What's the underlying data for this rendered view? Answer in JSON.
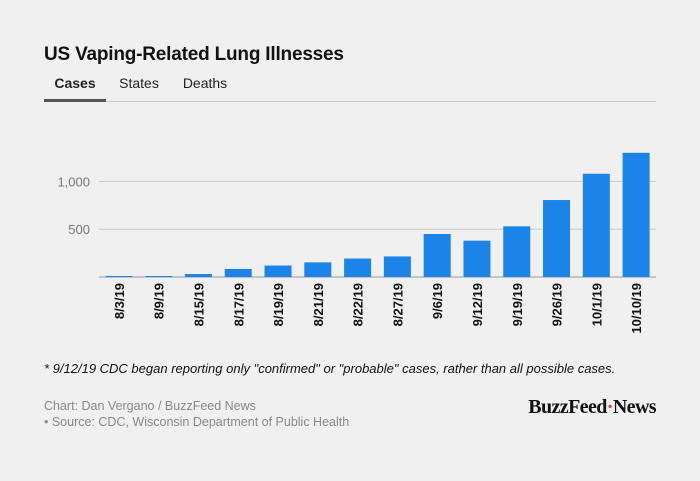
{
  "title": "US Vaping-Related Lung Illnesses",
  "tabs": [
    {
      "label": "Cases",
      "active": true
    },
    {
      "label": "States",
      "active": false
    },
    {
      "label": "Deaths",
      "active": false
    }
  ],
  "colors": {
    "bar": "#1a84e8",
    "grid": "#c9c9c9",
    "axis_text": "#777777"
  },
  "chart_data": {
    "type": "bar",
    "categories": [
      "8/3/19",
      "8/9/19",
      "8/15/19",
      "8/17/19",
      "8/19/19",
      "8/21/19",
      "8/22/19",
      "8/27/19",
      "9/6/19",
      "9/12/19",
      "9/19/19",
      "9/26/19",
      "10/1/19",
      "10/10/19"
    ],
    "values": [
      5,
      5,
      31,
      84,
      120,
      153,
      193,
      215,
      450,
      380,
      530,
      805,
      1080,
      1299
    ],
    "ylim": [
      0,
      1400
    ],
    "yticks": [
      500,
      1000
    ],
    "ytick_labels": [
      "500",
      "1,000"
    ],
    "grid": true
  },
  "footnote": "* 9/12/19 CDC began reporting only \"confirmed\" or \"probable\" cases, rather than all possible cases.",
  "credit_line1": "Chart: Dan Vergano / BuzzFeed News",
  "credit_line2": "• Source: CDC, Wisconsin Department of Public Health",
  "logo": {
    "part1": "BuzzFeed",
    "part2": "News"
  }
}
